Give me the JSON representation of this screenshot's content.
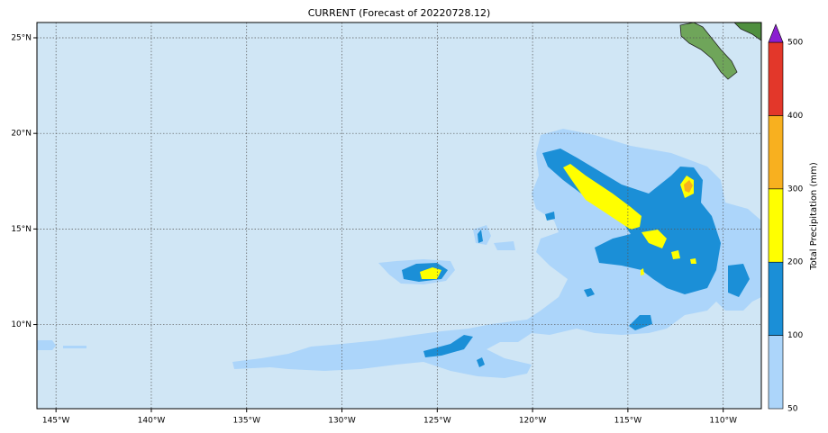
{
  "map": {
    "title": "CURRENT (Forecast of 20220728.12)",
    "xlim": [
      -146,
      -108
    ],
    "ylim": [
      5.6,
      25.8
    ],
    "xticks": [
      {
        "value": -145,
        "label": "145°W"
      },
      {
        "value": -140,
        "label": "140°W"
      },
      {
        "value": -135,
        "label": "135°W"
      },
      {
        "value": -130,
        "label": "130°W"
      },
      {
        "value": -125,
        "label": "125°W"
      },
      {
        "value": -120,
        "label": "120°W"
      },
      {
        "value": -115,
        "label": "115°W"
      },
      {
        "value": -110,
        "label": "110°W"
      }
    ],
    "yticks": [
      {
        "value": 10,
        "label": "10°N"
      },
      {
        "value": 15,
        "label": "15°N"
      },
      {
        "value": 20,
        "label": "20°N"
      },
      {
        "value": 25,
        "label": "25°N"
      }
    ],
    "grid": true,
    "colorbar": {
      "label": "Total Precipitation (mm)",
      "levels": [
        50,
        100,
        200,
        300,
        400,
        500
      ],
      "colors": [
        "#acd5fa",
        "#1b8fd7",
        "#ffff00",
        "#f8b01f",
        "#e3372a"
      ],
      "over_color": "#8b1fd1"
    }
  }
}
